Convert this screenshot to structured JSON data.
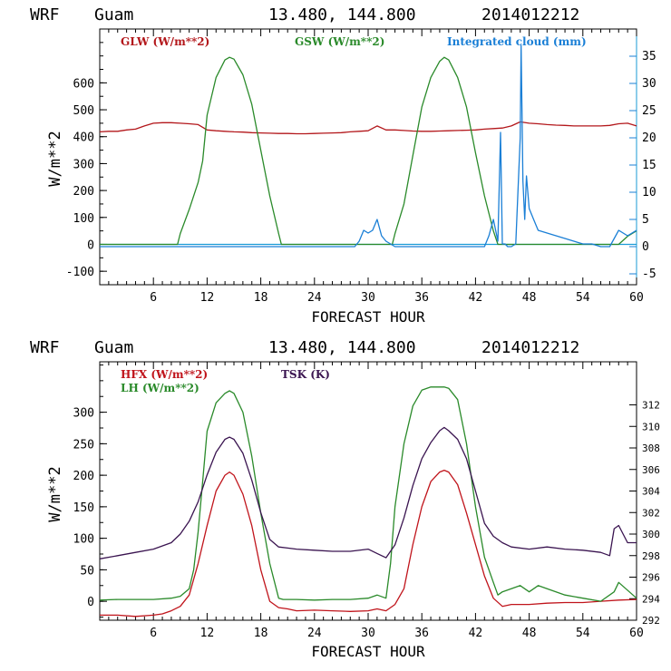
{
  "chart_data": [
    {
      "type": "line",
      "header": {
        "model": "WRF",
        "location": "Guam",
        "coords": "13.480, 144.800",
        "run": "2014012212"
      },
      "xlabel": "FORECAST HOUR",
      "ylabel": "W/m**2",
      "xlim": [
        0,
        60
      ],
      "ylim": [
        -150,
        800
      ],
      "y2lim": [
        -7,
        40
      ],
      "xticks": [
        "6",
        "12",
        "18",
        "24",
        "30",
        "36",
        "42",
        "48",
        "54",
        "60"
      ],
      "yticks": [
        "-100",
        "0",
        "100",
        "200",
        "300",
        "400",
        "500",
        "600"
      ],
      "y2ticks": [
        "-5",
        "0",
        "5",
        "10",
        "15",
        "20",
        "25",
        "30",
        "35"
      ],
      "colors": {
        "GLW": "#b3171b",
        "GSW": "#2a8a2a",
        "CLD": "#1a7fd6",
        "zero": "#1a9bd6"
      },
      "series": [
        {
          "name": "GLW (W/m**2)",
          "axis": "left",
          "x": [
            0,
            1,
            2,
            3,
            4,
            5,
            6,
            7,
            8,
            9,
            10,
            11,
            12,
            13,
            14,
            15,
            16,
            17,
            18,
            19,
            20,
            21,
            22,
            23,
            24,
            25,
            26,
            27,
            28,
            29,
            30,
            31,
            32,
            33,
            34,
            35,
            36,
            37,
            38,
            39,
            40,
            41,
            42,
            43,
            44,
            45,
            46,
            47,
            48,
            49,
            50,
            51,
            52,
            53,
            54,
            55,
            56,
            57,
            58,
            59,
            60
          ],
          "y": [
            418,
            420,
            420,
            425,
            428,
            440,
            450,
            452,
            452,
            450,
            448,
            445,
            425,
            422,
            420,
            418,
            417,
            415,
            414,
            413,
            412,
            412,
            411,
            411,
            412,
            413,
            414,
            415,
            418,
            420,
            422,
            440,
            425,
            425,
            423,
            421,
            420,
            420,
            421,
            422,
            423,
            424,
            425,
            428,
            430,
            432,
            440,
            455,
            450,
            448,
            445,
            443,
            442,
            440,
            440,
            440,
            440,
            442,
            448,
            450,
            440
          ]
        },
        {
          "name": "GSW (W/m**2)",
          "axis": "left",
          "x": [
            0,
            8.7,
            9,
            10,
            11,
            11.5,
            12,
            13,
            14,
            14.5,
            15,
            16,
            17,
            18,
            19,
            20,
            20.3,
            32.7,
            33,
            34,
            35,
            36,
            37,
            38,
            38.5,
            39,
            40,
            41,
            42,
            43,
            44,
            44.5,
            58,
            59,
            60
          ],
          "y": [
            0,
            0,
            40,
            130,
            230,
            310,
            480,
            620,
            685,
            695,
            688,
            630,
            520,
            350,
            180,
            40,
            0,
            0,
            40,
            150,
            330,
            510,
            620,
            680,
            695,
            685,
            620,
            510,
            340,
            180,
            50,
            0,
            0,
            30,
            50
          ]
        },
        {
          "name": "Integrated cloud (mm)",
          "axis": "right",
          "x": [
            0,
            28.5,
            29,
            29.5,
            30,
            30.5,
            31,
            31.5,
            32,
            32.5,
            33,
            43,
            43.5,
            44,
            44.5,
            44.8,
            45,
            45.3,
            45.6,
            46,
            46.5,
            47,
            47.1,
            47.3,
            47.5,
            47.7,
            48,
            48.5,
            49,
            50,
            51,
            52,
            53,
            54,
            55,
            56,
            57,
            58,
            59,
            60
          ],
          "y": [
            0,
            0,
            1,
            3,
            2.5,
            3,
            5,
            2,
            1,
            0.5,
            0,
            0,
            2,
            5,
            1,
            21,
            0.5,
            0.5,
            0,
            0,
            0.5,
            20,
            37,
            12,
            5,
            13,
            7,
            5,
            3,
            2.5,
            2,
            1.5,
            1,
            0.5,
            0.5,
            0,
            0,
            3,
            2,
            3
          ]
        }
      ]
    },
    {
      "type": "line",
      "header": {
        "model": "WRF",
        "location": "Guam",
        "coords": "13.480, 144.800",
        "run": "2014012212"
      },
      "xlabel": "FORECAST HOUR",
      "ylabel": "W/m**2",
      "xlim": [
        0,
        60
      ],
      "ylim": [
        -30,
        380
      ],
      "y2lim": [
        292,
        316
      ],
      "xticks": [
        "6",
        "12",
        "18",
        "24",
        "30",
        "36",
        "42",
        "48",
        "54",
        "60"
      ],
      "yticks": [
        "0",
        "50",
        "100",
        "150",
        "200",
        "250",
        "300"
      ],
      "y2ticks": [
        "292",
        "294",
        "296",
        "298",
        "300",
        "302",
        "304",
        "306",
        "308",
        "310",
        "312"
      ],
      "colors": {
        "HFX": "#c0141b",
        "LH": "#2a8a2a",
        "TSK": "#3a1450"
      },
      "series": [
        {
          "name": "HFX (W/m**2)",
          "axis": "left",
          "x": [
            0,
            2,
            4,
            6,
            7,
            8,
            9,
            10,
            11,
            12,
            13,
            14,
            14.5,
            15,
            16,
            17,
            18,
            19,
            20,
            21,
            22,
            24,
            26,
            28,
            30,
            31,
            32,
            33,
            34,
            35,
            36,
            37,
            38,
            38.5,
            39,
            40,
            41,
            42,
            43,
            44,
            45,
            46,
            48,
            50,
            52,
            54,
            56,
            58,
            60
          ],
          "y": [
            -22,
            -22,
            -24,
            -22,
            -20,
            -15,
            -8,
            10,
            60,
            120,
            175,
            200,
            205,
            200,
            170,
            120,
            50,
            0,
            -10,
            -12,
            -15,
            -14,
            -15,
            -16,
            -15,
            -12,
            -15,
            -5,
            20,
            90,
            150,
            190,
            205,
            208,
            205,
            185,
            140,
            90,
            40,
            5,
            -8,
            -5,
            -5,
            -3,
            -2,
            -2,
            0,
            2,
            3
          ]
        },
        {
          "name": "LH (W/m**2)",
          "axis": "left",
          "x": [
            0,
            2,
            4,
            6,
            8,
            9,
            10,
            10.5,
            11,
            11.5,
            12,
            13,
            14,
            14.5,
            15,
            16,
            17,
            18,
            19,
            20,
            20.5,
            22,
            24,
            26,
            28,
            30,
            31,
            32,
            32.5,
            33,
            34,
            35,
            36,
            37,
            38,
            38.5,
            39,
            40,
            41,
            42,
            43,
            44,
            44.5,
            45,
            46,
            47,
            48,
            49,
            50,
            52,
            54,
            56,
            57.5,
            58,
            60
          ],
          "y": [
            2,
            3,
            3,
            3,
            5,
            8,
            20,
            50,
            110,
            190,
            270,
            315,
            330,
            334,
            330,
            300,
            230,
            140,
            60,
            5,
            3,
            3,
            2,
            3,
            3,
            5,
            10,
            5,
            60,
            150,
            250,
            310,
            335,
            340,
            340,
            340,
            338,
            320,
            250,
            150,
            70,
            30,
            10,
            15,
            20,
            25,
            15,
            25,
            20,
            10,
            5,
            0,
            15,
            30,
            5
          ]
        },
        {
          "name": "TSK (K)",
          "axis": "right",
          "x": [
            0,
            2,
            4,
            6,
            8,
            9,
            10,
            11,
            12,
            13,
            14,
            14.5,
            15,
            16,
            17,
            18,
            19,
            20,
            21,
            22,
            24,
            26,
            28,
            30,
            31,
            32,
            33,
            34,
            35,
            36,
            37,
            38,
            38.5,
            39,
            40,
            41,
            42,
            43,
            44,
            45,
            46,
            48,
            50,
            52,
            54,
            56,
            57,
            57.5,
            58,
            59,
            60
          ],
          "y": [
            297.7,
            298.0,
            298.3,
            298.6,
            299.2,
            300.0,
            301.2,
            303.0,
            305.5,
            307.6,
            308.8,
            309.0,
            308.8,
            307.5,
            305.0,
            302.0,
            299.5,
            298.8,
            298.7,
            298.6,
            298.5,
            298.4,
            298.4,
            298.6,
            298.2,
            297.8,
            299.0,
            301.5,
            304.5,
            307.0,
            308.5,
            309.6,
            309.9,
            309.6,
            308.8,
            307.0,
            304.0,
            301.0,
            299.8,
            299.2,
            298.8,
            298.6,
            298.8,
            298.6,
            298.5,
            298.3,
            298.0,
            300.5,
            300.8,
            299.2,
            299.2
          ]
        }
      ]
    }
  ]
}
